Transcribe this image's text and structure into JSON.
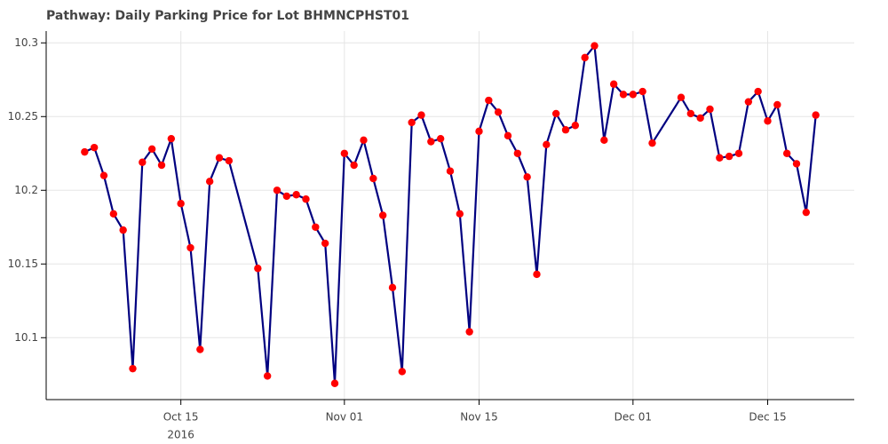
{
  "chart_data": {
    "type": "line",
    "title": "Pathway: Daily Parking Price for Lot BHMNCPHST01",
    "x": [
      "2016-10-05",
      "2016-10-06",
      "2016-10-07",
      "2016-10-08",
      "2016-10-09",
      "2016-10-10",
      "2016-10-11",
      "2016-10-12",
      "2016-10-13",
      "2016-10-14",
      "2016-10-15",
      "2016-10-16",
      "2016-10-17",
      "2016-10-18",
      "2016-10-19",
      "2016-10-20",
      "2016-10-23",
      "2016-10-24",
      "2016-10-25",
      "2016-10-26",
      "2016-10-27",
      "2016-10-28",
      "2016-10-29",
      "2016-10-30",
      "2016-10-31",
      "2016-11-01",
      "2016-11-02",
      "2016-11-03",
      "2016-11-04",
      "2016-11-05",
      "2016-11-06",
      "2016-11-07",
      "2016-11-08",
      "2016-11-09",
      "2016-11-10",
      "2016-11-11",
      "2016-11-12",
      "2016-11-13",
      "2016-11-14",
      "2016-11-15",
      "2016-11-16",
      "2016-11-17",
      "2016-11-18",
      "2016-11-19",
      "2016-11-20",
      "2016-11-21",
      "2016-11-22",
      "2016-11-23",
      "2016-11-24",
      "2016-11-25",
      "2016-11-26",
      "2016-11-27",
      "2016-11-28",
      "2016-11-29",
      "2016-11-30",
      "2016-12-01",
      "2016-12-02",
      "2016-12-03",
      "2016-12-06",
      "2016-12-07",
      "2016-12-08",
      "2016-12-09",
      "2016-12-10",
      "2016-12-11",
      "2016-12-12",
      "2016-12-13",
      "2016-12-14",
      "2016-12-15",
      "2016-12-16",
      "2016-12-17",
      "2016-12-18",
      "2016-12-19",
      "2016-12-20"
    ],
    "series": [
      {
        "color": "#000080",
        "marker_color": "#ff0000",
        "values": [
          10.226,
          10.229,
          10.21,
          10.184,
          10.173,
          10.079,
          10.219,
          10.228,
          10.217,
          10.235,
          10.191,
          10.161,
          10.092,
          10.206,
          10.222,
          10.22,
          10.147,
          10.074,
          10.2,
          10.196,
          10.197,
          10.194,
          10.175,
          10.164,
          10.069,
          10.225,
          10.217,
          10.234,
          10.208,
          10.183,
          10.134,
          10.077,
          10.246,
          10.251,
          10.233,
          10.235,
          10.213,
          10.184,
          10.104,
          10.24,
          10.261,
          10.253,
          10.237,
          10.225,
          10.209,
          10.143,
          10.231,
          10.252,
          10.241,
          10.244,
          10.29,
          10.298,
          10.234,
          10.272,
          10.265,
          10.265,
          10.267,
          10.232,
          10.263,
          10.252,
          10.249,
          10.255,
          10.222,
          10.223,
          10.225,
          10.26,
          10.267,
          10.247,
          10.258,
          10.225,
          10.218,
          10.185,
          10.251
        ]
      }
    ],
    "xlim": [
      "2016-10-01",
      "2016-12-24"
    ],
    "xticks": [
      {
        "value": "2016-10-15",
        "label": "Oct 15"
      },
      {
        "value": "2016-11-01",
        "label": "Nov 01"
      },
      {
        "value": "2016-11-15",
        "label": "Nov 15"
      },
      {
        "value": "2016-12-01",
        "label": "Dec 01"
      },
      {
        "value": "2016-12-15",
        "label": "Dec 15"
      }
    ],
    "x_year": "2016",
    "ylim": [
      10.058,
      10.308
    ],
    "yticks": [
      10.1,
      10.15,
      10.2,
      10.25,
      10.3
    ],
    "grid": true
  }
}
